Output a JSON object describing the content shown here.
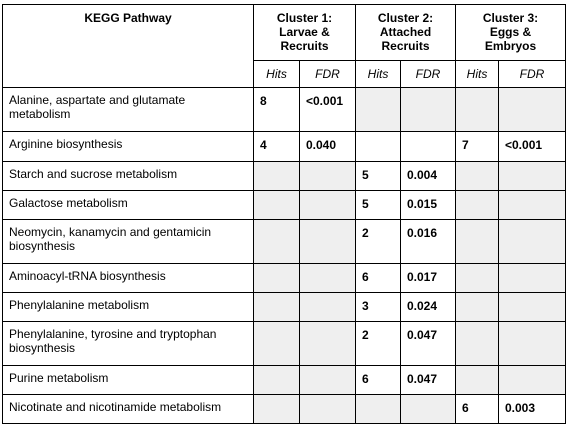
{
  "caption_fragment": "",
  "table": {
    "pathway_header": "KEGG Pathway",
    "clusters": [
      {
        "label_lines": [
          "Cluster 1:",
          "Larvae &",
          "Recruits"
        ]
      },
      {
        "label_lines": [
          "Cluster 2:",
          "Attached",
          "Recruits"
        ]
      },
      {
        "label_lines": [
          "Cluster 3:",
          "Eggs &",
          "Embryos"
        ]
      }
    ],
    "sub_headers": [
      "Hits",
      "FDR",
      "Hits",
      "FDR",
      "Hits",
      "FDR"
    ],
    "rows": [
      {
        "name": "Alanine, aspartate and glutamate metabolism",
        "c1_hits": "8",
        "c1_fdr": "<0.001",
        "c2_hits": "",
        "c2_fdr": "",
        "c3_hits": "",
        "c3_fdr": ""
      },
      {
        "name": "Arginine biosynthesis",
        "c1_hits": "4",
        "c1_fdr": "0.040",
        "c2_hits": "",
        "c2_fdr": "",
        "c3_hits": "7",
        "c3_fdr": "<0.001"
      },
      {
        "name": "Starch and sucrose metabolism",
        "c1_hits": "",
        "c1_fdr": "",
        "c2_hits": "5",
        "c2_fdr": "0.004",
        "c3_hits": "",
        "c3_fdr": ""
      },
      {
        "name": "Galactose metabolism",
        "c1_hits": "",
        "c1_fdr": "",
        "c2_hits": "5",
        "c2_fdr": "0.015",
        "c3_hits": "",
        "c3_fdr": ""
      },
      {
        "name": "Neomycin, kanamycin and gentamicin biosynthesis",
        "c1_hits": "",
        "c1_fdr": "",
        "c2_hits": "2",
        "c2_fdr": "0.016",
        "c3_hits": "",
        "c3_fdr": ""
      },
      {
        "name": "Aminoacyl-tRNA biosynthesis",
        "c1_hits": "",
        "c1_fdr": "",
        "c2_hits": "6",
        "c2_fdr": "0.017",
        "c3_hits": "",
        "c3_fdr": ""
      },
      {
        "name": "Phenylalanine metabolism",
        "c1_hits": "",
        "c1_fdr": "",
        "c2_hits": "3",
        "c2_fdr": "0.024",
        "c3_hits": "",
        "c3_fdr": ""
      },
      {
        "name": "Phenylalanine, tyrosine and tryptophan biosynthesis",
        "c1_hits": "",
        "c1_fdr": "",
        "c2_hits": "2",
        "c2_fdr": "0.047",
        "c3_hits": "",
        "c3_fdr": ""
      },
      {
        "name": "Purine metabolism",
        "c1_hits": "",
        "c1_fdr": "",
        "c2_hits": "6",
        "c2_fdr": "0.047",
        "c3_hits": "",
        "c3_fdr": ""
      },
      {
        "name": "Nicotinate and nicotinamide metabolism",
        "c1_hits": "",
        "c1_fdr": "",
        "c2_hits": "",
        "c2_fdr": "",
        "c3_hits": "6",
        "c3_fdr": "0.003"
      }
    ],
    "highlight_color": "#efefef"
  }
}
